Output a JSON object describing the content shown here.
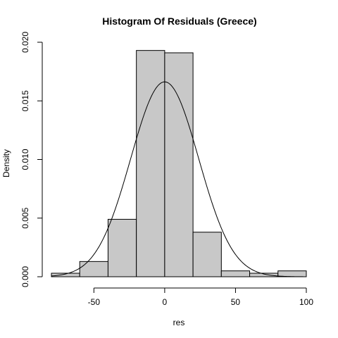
{
  "chart_data": {
    "type": "bar",
    "title": "Histogram Of Residuals (Greece)",
    "xlabel": "res",
    "ylabel": "Density",
    "bins": [
      {
        "start": -80,
        "end": -60,
        "density": 0.0003
      },
      {
        "start": -60,
        "end": -40,
        "density": 0.0013
      },
      {
        "start": -40,
        "end": -20,
        "density": 0.0049
      },
      {
        "start": -20,
        "end": 0,
        "density": 0.0193
      },
      {
        "start": 0,
        "end": 20,
        "density": 0.0191
      },
      {
        "start": 20,
        "end": 40,
        "density": 0.0038
      },
      {
        "start": 40,
        "end": 60,
        "density": 0.0005
      },
      {
        "start": 60,
        "end": 80,
        "density": 0.0003
      },
      {
        "start": 80,
        "end": 100,
        "density": 0.0005
      }
    ],
    "density_curve": {
      "type": "normal",
      "mean": 0,
      "sd": 24
    },
    "x_ticks": [
      -50,
      0,
      50,
      100
    ],
    "y_ticks": [
      0.0,
      0.005,
      0.01,
      0.015,
      0.02
    ],
    "y_tick_labels": [
      "0.000",
      "0.005",
      "0.010",
      "0.015",
      "0.020"
    ],
    "xlim": [
      -80,
      100
    ],
    "ylim": [
      0,
      0.02
    ],
    "bar_fill": "#c8c8c8",
    "bar_stroke": "#000000",
    "curve_color": "#000000",
    "grid": false
  }
}
